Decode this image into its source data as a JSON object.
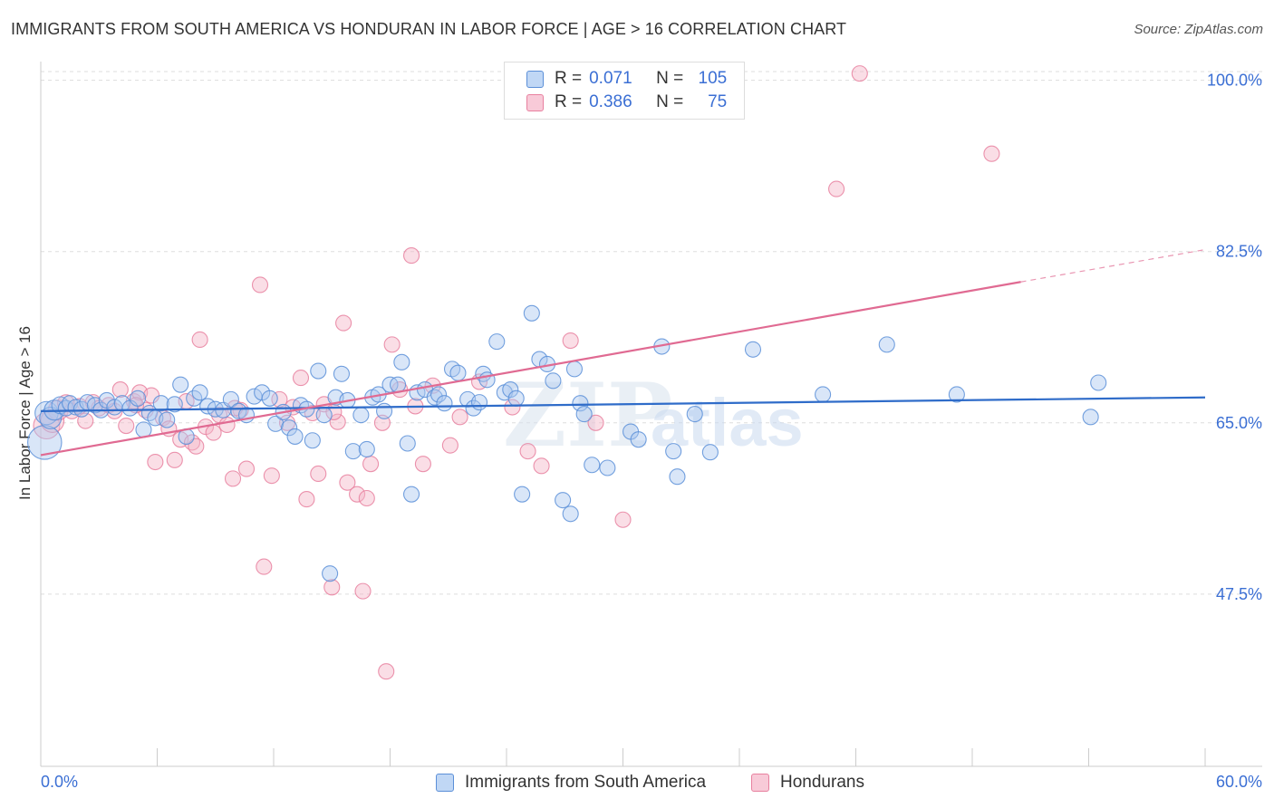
{
  "title": "IMMIGRANTS FROM SOUTH AMERICA VS HONDURAN IN LABOR FORCE | AGE > 16 CORRELATION CHART",
  "source": "Source: ZipAtlas.com",
  "watermark": {
    "zip": "ZIP",
    "atlas": "atlas"
  },
  "colors": {
    "blue_fill": "#aac8f0",
    "blue_stroke": "#5b8fd8",
    "blue_line": "#2f6cc9",
    "pink_fill": "#f5b6c8",
    "pink_stroke": "#e8809f",
    "pink_line": "#e06a92",
    "tick_label": "#3b6fd4",
    "grid": "#dddddd"
  },
  "legend": {
    "rows": [
      {
        "r_label": "R =",
        "r_value": "0.071",
        "n_label": "N =",
        "n_value": "105"
      },
      {
        "r_label": "R =",
        "r_value": "0.386",
        "n_label": "N =",
        "n_value": "75"
      }
    ]
  },
  "chart_data": {
    "type": "scatter",
    "ylabel": "In Labor Force | Age > 16",
    "x_tick_labels": [
      "0.0%",
      "60.0%"
    ],
    "y_ticks": [
      {
        "value": 100.0,
        "label": "100.0%"
      },
      {
        "value": 82.5,
        "label": "82.5%"
      },
      {
        "value": 65.0,
        "label": "65.0%"
      },
      {
        "value": 47.5,
        "label": "47.5%"
      }
    ],
    "xlim": [
      0,
      60
    ],
    "ylim": [
      29.9,
      102.1
    ],
    "grid": true,
    "series": [
      {
        "name": "Immigrants from South America",
        "trend": {
          "x": [
            0,
            60
          ],
          "y": [
            66.2,
            67.6
          ]
        },
        "points": [
          {
            "x": 0.2,
            "y": 63.0,
            "s": 2.2
          },
          {
            "x": 0.3,
            "y": 66.0,
            "s": 1.5
          },
          {
            "x": 0.5,
            "y": 65.5,
            "s": 1.4
          },
          {
            "x": 0.7,
            "y": 66.3,
            "s": 1.3
          },
          {
            "x": 1.0,
            "y": 66.8,
            "s": 1.1
          },
          {
            "x": 1.3,
            "y": 66.5,
            "s": 1
          },
          {
            "x": 1.5,
            "y": 67.0,
            "s": 1
          },
          {
            "x": 1.8,
            "y": 66.6,
            "s": 1
          },
          {
            "x": 2.1,
            "y": 66.4,
            "s": 1
          },
          {
            "x": 2.4,
            "y": 67.1,
            "s": 1
          },
          {
            "x": 2.8,
            "y": 66.8,
            "s": 1
          },
          {
            "x": 3.1,
            "y": 66.3,
            "s": 1
          },
          {
            "x": 3.4,
            "y": 67.3,
            "s": 1
          },
          {
            "x": 3.8,
            "y": 66.6,
            "s": 1
          },
          {
            "x": 4.2,
            "y": 67.0,
            "s": 1
          },
          {
            "x": 4.6,
            "y": 66.5,
            "s": 1
          },
          {
            "x": 5.0,
            "y": 67.5,
            "s": 1
          },
          {
            "x": 5.3,
            "y": 64.3,
            "s": 1
          },
          {
            "x": 5.6,
            "y": 66.0,
            "s": 1
          },
          {
            "x": 5.9,
            "y": 65.5,
            "s": 1
          },
          {
            "x": 6.2,
            "y": 67.0,
            "s": 1
          },
          {
            "x": 6.5,
            "y": 65.3,
            "s": 1
          },
          {
            "x": 6.9,
            "y": 66.9,
            "s": 1
          },
          {
            "x": 7.2,
            "y": 68.9,
            "s": 1
          },
          {
            "x": 7.5,
            "y": 63.6,
            "s": 1
          },
          {
            "x": 7.9,
            "y": 67.5,
            "s": 1
          },
          {
            "x": 8.2,
            "y": 68.1,
            "s": 1
          },
          {
            "x": 8.6,
            "y": 66.7,
            "s": 1
          },
          {
            "x": 9.0,
            "y": 66.4,
            "s": 1
          },
          {
            "x": 9.4,
            "y": 66.3,
            "s": 1
          },
          {
            "x": 9.8,
            "y": 67.4,
            "s": 1
          },
          {
            "x": 10.2,
            "y": 66.2,
            "s": 1
          },
          {
            "x": 10.6,
            "y": 65.8,
            "s": 1
          },
          {
            "x": 11.0,
            "y": 67.7,
            "s": 1
          },
          {
            "x": 11.4,
            "y": 68.1,
            "s": 1
          },
          {
            "x": 11.8,
            "y": 67.5,
            "s": 1
          },
          {
            "x": 12.1,
            "y": 64.9,
            "s": 1
          },
          {
            "x": 12.5,
            "y": 66.1,
            "s": 1
          },
          {
            "x": 12.8,
            "y": 64.5,
            "s": 1
          },
          {
            "x": 13.1,
            "y": 63.6,
            "s": 1
          },
          {
            "x": 13.4,
            "y": 66.8,
            "s": 1
          },
          {
            "x": 13.7,
            "y": 66.4,
            "s": 1
          },
          {
            "x": 14.0,
            "y": 63.2,
            "s": 1
          },
          {
            "x": 14.3,
            "y": 70.3,
            "s": 1
          },
          {
            "x": 14.6,
            "y": 65.8,
            "s": 1
          },
          {
            "x": 14.9,
            "y": 49.6,
            "s": 1
          },
          {
            "x": 15.2,
            "y": 67.6,
            "s": 1
          },
          {
            "x": 15.5,
            "y": 70.0,
            "s": 1
          },
          {
            "x": 15.8,
            "y": 67.3,
            "s": 1
          },
          {
            "x": 16.1,
            "y": 62.1,
            "s": 1
          },
          {
            "x": 16.5,
            "y": 65.8,
            "s": 1
          },
          {
            "x": 16.8,
            "y": 62.3,
            "s": 1
          },
          {
            "x": 17.1,
            "y": 67.6,
            "s": 1
          },
          {
            "x": 17.4,
            "y": 67.9,
            "s": 1
          },
          {
            "x": 17.7,
            "y": 66.2,
            "s": 1
          },
          {
            "x": 18.0,
            "y": 68.9,
            "s": 1
          },
          {
            "x": 18.4,
            "y": 68.9,
            "s": 1
          },
          {
            "x": 18.6,
            "y": 71.2,
            "s": 1
          },
          {
            "x": 18.9,
            "y": 62.9,
            "s": 1
          },
          {
            "x": 19.1,
            "y": 57.7,
            "s": 1
          },
          {
            "x": 19.4,
            "y": 68.1,
            "s": 1
          },
          {
            "x": 19.8,
            "y": 68.4,
            "s": 1
          },
          {
            "x": 20.3,
            "y": 67.6,
            "s": 1
          },
          {
            "x": 20.5,
            "y": 67.9,
            "s": 1
          },
          {
            "x": 20.8,
            "y": 67.0,
            "s": 1
          },
          {
            "x": 21.2,
            "y": 70.5,
            "s": 1
          },
          {
            "x": 21.5,
            "y": 70.1,
            "s": 1
          },
          {
            "x": 22.0,
            "y": 67.4,
            "s": 1
          },
          {
            "x": 22.3,
            "y": 66.5,
            "s": 1
          },
          {
            "x": 22.6,
            "y": 67.1,
            "s": 1
          },
          {
            "x": 22.8,
            "y": 70.0,
            "s": 1
          },
          {
            "x": 23.0,
            "y": 69.4,
            "s": 1
          },
          {
            "x": 23.5,
            "y": 73.3,
            "s": 1
          },
          {
            "x": 23.9,
            "y": 68.1,
            "s": 1
          },
          {
            "x": 24.2,
            "y": 68.4,
            "s": 1
          },
          {
            "x": 24.5,
            "y": 67.5,
            "s": 1
          },
          {
            "x": 24.8,
            "y": 57.7,
            "s": 1
          },
          {
            "x": 25.3,
            "y": 76.2,
            "s": 1
          },
          {
            "x": 25.7,
            "y": 71.5,
            "s": 1
          },
          {
            "x": 26.1,
            "y": 71.0,
            "s": 1
          },
          {
            "x": 26.4,
            "y": 69.3,
            "s": 1
          },
          {
            "x": 26.9,
            "y": 57.1,
            "s": 1
          },
          {
            "x": 27.3,
            "y": 55.7,
            "s": 1
          },
          {
            "x": 27.5,
            "y": 70.5,
            "s": 1
          },
          {
            "x": 27.8,
            "y": 67.0,
            "s": 1
          },
          {
            "x": 28.0,
            "y": 65.9,
            "s": 1
          },
          {
            "x": 28.4,
            "y": 60.7,
            "s": 1
          },
          {
            "x": 29.2,
            "y": 60.4,
            "s": 1
          },
          {
            "x": 30.4,
            "y": 64.1,
            "s": 1
          },
          {
            "x": 30.8,
            "y": 63.3,
            "s": 1
          },
          {
            "x": 32.0,
            "y": 72.8,
            "s": 1
          },
          {
            "x": 32.6,
            "y": 62.1,
            "s": 1
          },
          {
            "x": 32.8,
            "y": 59.5,
            "s": 1
          },
          {
            "x": 33.7,
            "y": 65.9,
            "s": 1
          },
          {
            "x": 34.5,
            "y": 62.0,
            "s": 1
          },
          {
            "x": 36.7,
            "y": 72.5,
            "s": 1
          },
          {
            "x": 40.3,
            "y": 67.9,
            "s": 1
          },
          {
            "x": 43.6,
            "y": 73.0,
            "s": 1
          },
          {
            "x": 47.2,
            "y": 67.9,
            "s": 1
          },
          {
            "x": 54.1,
            "y": 65.6,
            "s": 1
          },
          {
            "x": 54.5,
            "y": 69.1,
            "s": 1
          }
        ]
      },
      {
        "name": "Hondurans",
        "trend": {
          "x": [
            0,
            50.5
          ],
          "y": [
            61.7,
            79.4
          ]
        },
        "trend_dashed": {
          "x": [
            50.5,
            60
          ],
          "y": [
            79.4,
            82.7
          ]
        },
        "points": [
          {
            "x": 0.3,
            "y": 64.7,
            "s": 1.7
          },
          {
            "x": 0.6,
            "y": 65.2,
            "s": 1.5
          },
          {
            "x": 0.9,
            "y": 66.3,
            "s": 1.3
          },
          {
            "x": 1.3,
            "y": 67.0,
            "s": 1.1
          },
          {
            "x": 1.6,
            "y": 66.2,
            "s": 1
          },
          {
            "x": 2.0,
            "y": 66.7,
            "s": 1
          },
          {
            "x": 2.3,
            "y": 65.2,
            "s": 1
          },
          {
            "x": 2.7,
            "y": 67.1,
            "s": 1
          },
          {
            "x": 3.0,
            "y": 66.5,
            "s": 1
          },
          {
            "x": 3.5,
            "y": 66.8,
            "s": 1
          },
          {
            "x": 3.8,
            "y": 66.2,
            "s": 1
          },
          {
            "x": 4.1,
            "y": 68.4,
            "s": 1
          },
          {
            "x": 4.4,
            "y": 64.7,
            "s": 1
          },
          {
            "x": 4.8,
            "y": 67.2,
            "s": 1
          },
          {
            "x": 5.1,
            "y": 68.1,
            "s": 1
          },
          {
            "x": 5.4,
            "y": 66.3,
            "s": 1
          },
          {
            "x": 5.7,
            "y": 67.8,
            "s": 1
          },
          {
            "x": 5.9,
            "y": 61.0,
            "s": 1
          },
          {
            "x": 6.3,
            "y": 65.5,
            "s": 1
          },
          {
            "x": 6.6,
            "y": 64.4,
            "s": 1
          },
          {
            "x": 6.9,
            "y": 61.2,
            "s": 1
          },
          {
            "x": 7.2,
            "y": 63.3,
            "s": 1
          },
          {
            "x": 7.5,
            "y": 67.2,
            "s": 1
          },
          {
            "x": 7.8,
            "y": 63.0,
            "s": 1
          },
          {
            "x": 8.0,
            "y": 62.6,
            "s": 1
          },
          {
            "x": 8.2,
            "y": 73.5,
            "s": 1
          },
          {
            "x": 8.5,
            "y": 64.6,
            "s": 1
          },
          {
            "x": 8.9,
            "y": 64.0,
            "s": 1
          },
          {
            "x": 9.2,
            "y": 65.8,
            "s": 1
          },
          {
            "x": 9.6,
            "y": 64.8,
            "s": 1
          },
          {
            "x": 9.9,
            "y": 59.3,
            "s": 1
          },
          {
            "x": 10.3,
            "y": 66.3,
            "s": 1
          },
          {
            "x": 10.6,
            "y": 60.3,
            "s": 1
          },
          {
            "x": 11.3,
            "y": 79.1,
            "s": 1
          },
          {
            "x": 11.5,
            "y": 50.3,
            "s": 1
          },
          {
            "x": 11.9,
            "y": 59.6,
            "s": 1
          },
          {
            "x": 12.3,
            "y": 67.4,
            "s": 1
          },
          {
            "x": 12.7,
            "y": 65.0,
            "s": 1
          },
          {
            "x": 13.0,
            "y": 66.6,
            "s": 1
          },
          {
            "x": 13.4,
            "y": 69.6,
            "s": 1
          },
          {
            "x": 13.7,
            "y": 57.2,
            "s": 1
          },
          {
            "x": 14.0,
            "y": 66.0,
            "s": 1
          },
          {
            "x": 14.3,
            "y": 59.8,
            "s": 1
          },
          {
            "x": 14.6,
            "y": 66.9,
            "s": 1
          },
          {
            "x": 15.0,
            "y": 48.2,
            "s": 1
          },
          {
            "x": 15.3,
            "y": 65.1,
            "s": 1
          },
          {
            "x": 15.6,
            "y": 75.2,
            "s": 1
          },
          {
            "x": 15.8,
            "y": 58.9,
            "s": 1
          },
          {
            "x": 16.3,
            "y": 57.7,
            "s": 1
          },
          {
            "x": 16.6,
            "y": 47.8,
            "s": 1
          },
          {
            "x": 16.8,
            "y": 57.3,
            "s": 1
          },
          {
            "x": 17.0,
            "y": 60.8,
            "s": 1
          },
          {
            "x": 17.6,
            "y": 65.0,
            "s": 1
          },
          {
            "x": 17.8,
            "y": 39.6,
            "s": 1
          },
          {
            "x": 18.1,
            "y": 73.0,
            "s": 1
          },
          {
            "x": 18.5,
            "y": 68.4,
            "s": 1
          },
          {
            "x": 19.1,
            "y": 82.1,
            "s": 1
          },
          {
            "x": 19.3,
            "y": 66.7,
            "s": 1
          },
          {
            "x": 19.7,
            "y": 60.8,
            "s": 1
          },
          {
            "x": 20.2,
            "y": 68.8,
            "s": 1
          },
          {
            "x": 21.1,
            "y": 62.7,
            "s": 1
          },
          {
            "x": 21.6,
            "y": 65.6,
            "s": 1
          },
          {
            "x": 22.6,
            "y": 69.2,
            "s": 1
          },
          {
            "x": 24.3,
            "y": 66.6,
            "s": 1
          },
          {
            "x": 25.1,
            "y": 62.1,
            "s": 1
          },
          {
            "x": 25.8,
            "y": 60.6,
            "s": 1
          },
          {
            "x": 27.3,
            "y": 73.4,
            "s": 1
          },
          {
            "x": 28.6,
            "y": 65.0,
            "s": 1
          },
          {
            "x": 30.0,
            "y": 55.1,
            "s": 1
          },
          {
            "x": 41.0,
            "y": 88.9,
            "s": 1
          },
          {
            "x": 42.2,
            "y": 100.7,
            "s": 1
          },
          {
            "x": 49.0,
            "y": 92.5,
            "s": 1
          },
          {
            "x": 4.9,
            "y": 66.8,
            "s": 1
          },
          {
            "x": 10.0,
            "y": 66.5,
            "s": 1
          },
          {
            "x": 15.1,
            "y": 66.1,
            "s": 1
          }
        ]
      }
    ]
  },
  "bottom_legend": [
    {
      "label": "Immigrants from South America"
    },
    {
      "label": "Hondurans"
    }
  ]
}
